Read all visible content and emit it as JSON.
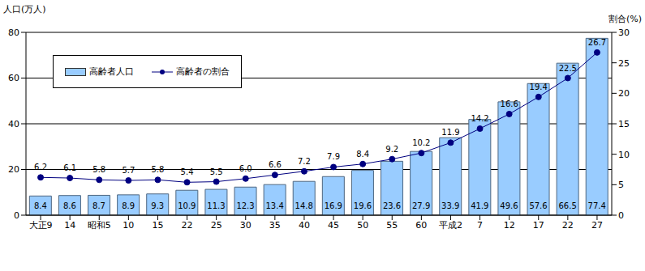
{
  "chart_data": {
    "type": "bar",
    "categories": [
      "大正9",
      "14",
      "昭和5",
      "10",
      "15",
      "22",
      "25",
      "30",
      "35",
      "40",
      "45",
      "50",
      "55",
      "60",
      "平成2",
      "7",
      "12",
      "17",
      "22",
      "27"
    ],
    "y_label": "人口(万人)",
    "y2_label": "割合(%)",
    "ylim": [
      0,
      80
    ],
    "yticks": [
      0,
      20,
      40,
      60,
      80
    ],
    "y2lim": [
      0,
      30
    ],
    "y2ticks": [
      0,
      5,
      10,
      15,
      20,
      25,
      30
    ],
    "grid": true,
    "legend": "upper left",
    "data_labels": true,
    "series": [
      {
        "name": "高齢者人口",
        "type": "bar",
        "color": "#99ccff",
        "values": [
          8.4,
          8.6,
          8.7,
          8.9,
          9.3,
          10.9,
          11.3,
          12.3,
          13.4,
          14.8,
          16.9,
          19.6,
          23.6,
          27.9,
          33.9,
          41.9,
          49.6,
          57.6,
          66.5,
          77.4
        ]
      },
      {
        "name": "高齢者の割合",
        "type": "line",
        "axis": "y2",
        "color": "#000080",
        "marker": "circle",
        "values": [
          6.2,
          6.1,
          5.8,
          5.7,
          5.8,
          5.4,
          5.5,
          6.0,
          6.6,
          7.2,
          7.9,
          8.4,
          9.2,
          10.2,
          11.9,
          14.2,
          16.6,
          19.4,
          22.5,
          26.7
        ],
        "value_labels": [
          "6.2",
          "6.1",
          "5.8",
          "5.7",
          "5.8",
          "5.4",
          "5.5",
          "6.0",
          "6.6",
          "7.2",
          "7.9",
          "8.4",
          "9.2",
          "10.2",
          "11.9",
          "14.2",
          "16.6",
          "19.4",
          "22.5",
          "26.7"
        ]
      }
    ]
  }
}
